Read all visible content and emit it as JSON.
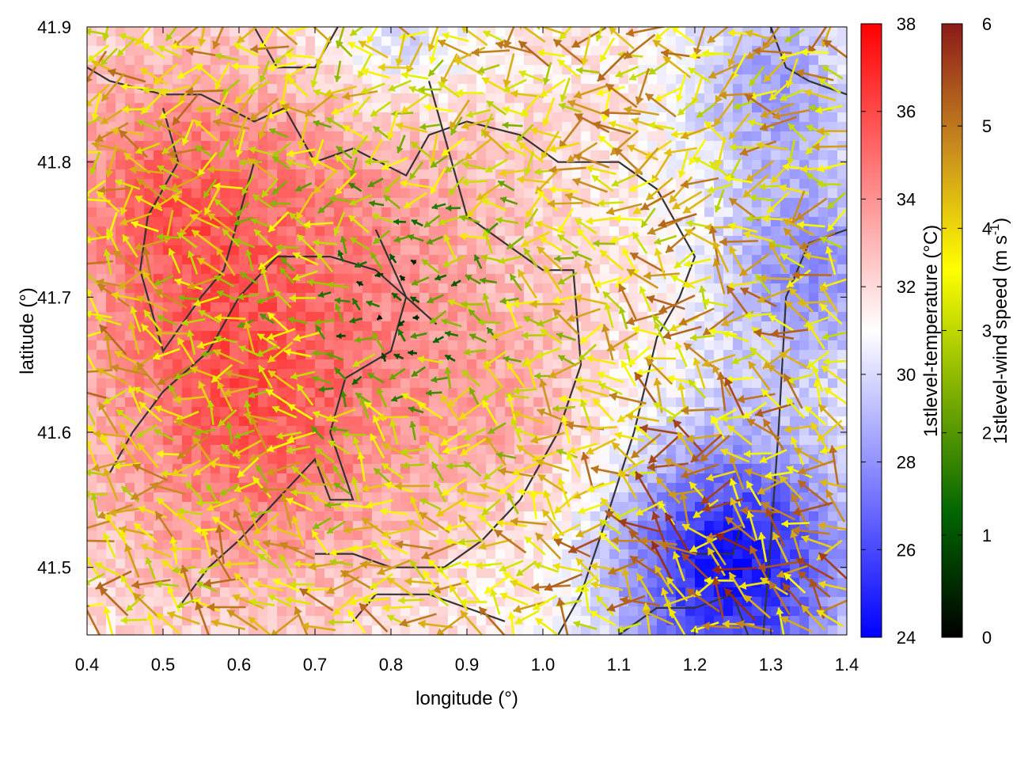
{
  "chart_data": {
    "type": "heatmap",
    "subtype": "temperature heatmap with wind vector arrows and coastline contours",
    "xlabel": "longitude (°)",
    "ylabel": "latitude (°)",
    "xlim": [
      0.4,
      1.4
    ],
    "ylim": [
      41.45,
      41.9
    ],
    "x_ticks": [
      "0.4",
      "0.5",
      "0.6",
      "0.7",
      "0.8",
      "0.9",
      "1.0",
      "1.1",
      "1.2",
      "1.3",
      "1.4"
    ],
    "y_ticks": [
      "41.5",
      "41.6",
      "41.7",
      "41.8",
      "41.9"
    ],
    "grid": false,
    "temperature_colorbar": {
      "label": "1stlevel-temperature (°C)",
      "range": [
        24,
        38
      ],
      "ticks": [
        "24",
        "26",
        "28",
        "30",
        "32",
        "34",
        "36",
        "38"
      ],
      "colors": [
        "#0000ff",
        "#ffffff",
        "#ff0000"
      ],
      "midpoint": 31
    },
    "wind_colorbar": {
      "label_main": "1stlevel-wind speed (m s",
      "label_sup": "-1",
      "label_end": ")",
      "range": [
        0,
        6
      ],
      "ticks": [
        "0",
        "1",
        "2",
        "3",
        "4",
        "5",
        "6"
      ],
      "colors": [
        "#000000",
        "#006400",
        "#7fb000",
        "#ffff00",
        "#c88a1e",
        "#8b1a1a"
      ]
    },
    "temperature_regions": [
      {
        "lon": 0.62,
        "lat": 41.62,
        "t": 35.5,
        "spread": 0.22
      },
      {
        "lon": 0.5,
        "lat": 41.78,
        "t": 34.5,
        "spread": 0.16
      },
      {
        "lon": 0.8,
        "lat": 41.8,
        "t": 33.5,
        "spread": 0.2
      },
      {
        "lon": 0.95,
        "lat": 41.62,
        "t": 33.0,
        "spread": 0.14
      },
      {
        "lon": 1.25,
        "lat": 41.5,
        "t": 24.5,
        "spread": 0.16
      },
      {
        "lon": 1.35,
        "lat": 41.72,
        "t": 28.0,
        "spread": 0.13
      },
      {
        "lon": 0.82,
        "lat": 41.89,
        "t": 29.0,
        "spread": 0.12
      },
      {
        "lon": 1.3,
        "lat": 41.86,
        "t": 28.5,
        "spread": 0.11
      }
    ],
    "background_temperature": 31.5,
    "wind_field": {
      "mean_direction": "westward",
      "slow_region_center": [
        0.8,
        41.7
      ],
      "fast_region_center": [
        1.25,
        41.52
      ],
      "speed_range": [
        0,
        6
      ]
    },
    "coastlines": [
      [
        [
          0.4,
          41.87
        ],
        [
          0.43,
          41.86
        ],
        [
          0.5,
          41.85
        ],
        [
          0.55,
          41.85
        ],
        [
          0.62,
          41.83
        ],
        [
          0.66,
          41.84
        ],
        [
          0.7,
          41.8
        ],
        [
          0.75,
          41.81
        ],
        [
          0.82,
          41.79
        ],
        [
          0.85,
          41.82
        ],
        [
          0.9,
          41.83
        ],
        [
          0.97,
          41.82
        ],
        [
          1.02,
          41.8
        ],
        [
          1.1,
          41.8
        ],
        [
          1.15,
          41.78
        ],
        [
          1.18,
          41.75
        ],
        [
          1.2,
          41.73
        ],
        [
          1.18,
          41.7
        ],
        [
          1.15,
          41.67
        ],
        [
          1.12,
          41.6
        ],
        [
          1.08,
          41.53
        ],
        [
          1.05,
          41.48
        ],
        [
          1.02,
          41.45
        ]
      ],
      [
        [
          0.5,
          41.84
        ],
        [
          0.52,
          41.8
        ],
        [
          0.48,
          41.76
        ],
        [
          0.47,
          41.72
        ],
        [
          0.5,
          41.66
        ],
        [
          0.55,
          41.7
        ],
        [
          0.58,
          41.72
        ],
        [
          0.6,
          41.76
        ],
        [
          0.62,
          41.8
        ]
      ],
      [
        [
          0.43,
          41.57
        ],
        [
          0.46,
          41.6
        ],
        [
          0.5,
          41.63
        ],
        [
          0.56,
          41.66
        ],
        [
          0.6,
          41.7
        ],
        [
          0.65,
          41.73
        ],
        [
          0.72,
          41.73
        ],
        [
          0.78,
          41.72
        ],
        [
          0.82,
          41.7
        ],
        [
          0.86,
          41.68
        ]
      ],
      [
        [
          0.85,
          41.86
        ],
        [
          0.88,
          41.8
        ],
        [
          0.9,
          41.76
        ],
        [
          0.95,
          41.74
        ],
        [
          1.0,
          41.72
        ],
        [
          1.04,
          41.72
        ],
        [
          1.05,
          41.65
        ],
        [
          1.02,
          41.6
        ],
        [
          0.97,
          41.55
        ],
        [
          0.92,
          41.52
        ],
        [
          0.87,
          41.5
        ],
        [
          0.8,
          41.5
        ],
        [
          0.75,
          41.51
        ],
        [
          0.7,
          41.51
        ]
      ],
      [
        [
          0.52,
          41.47
        ],
        [
          0.56,
          41.5
        ],
        [
          0.6,
          41.52
        ],
        [
          0.65,
          41.55
        ],
        [
          0.7,
          41.58
        ],
        [
          0.72,
          41.55
        ],
        [
          0.75,
          41.55
        ],
        [
          0.72,
          41.6
        ],
        [
          0.74,
          41.64
        ],
        [
          0.8,
          41.66
        ],
        [
          0.82,
          41.7
        ],
        [
          0.78,
          41.75
        ]
      ],
      [
        [
          0.75,
          41.46
        ],
        [
          0.78,
          41.48
        ],
        [
          0.85,
          41.48
        ],
        [
          0.9,
          41.47
        ],
        [
          0.95,
          41.46
        ]
      ],
      [
        [
          1.1,
          41.45
        ],
        [
          1.15,
          41.47
        ],
        [
          1.2,
          41.47
        ],
        [
          1.25,
          41.48
        ],
        [
          1.27,
          41.45
        ]
      ],
      [
        [
          1.2,
          41.51
        ],
        [
          1.25,
          41.51
        ],
        [
          1.26,
          41.53
        ]
      ],
      [
        [
          1.29,
          41.45
        ],
        [
          1.3,
          41.52
        ],
        [
          1.31,
          41.6
        ],
        [
          1.32,
          41.7
        ],
        [
          1.35,
          41.74
        ],
        [
          1.4,
          41.75
        ]
      ],
      [
        [
          1.3,
          41.9
        ],
        [
          1.32,
          41.87
        ],
        [
          1.35,
          41.86
        ],
        [
          1.4,
          41.85
        ]
      ],
      [
        [
          0.62,
          41.9
        ],
        [
          0.65,
          41.87
        ],
        [
          0.7,
          41.87
        ],
        [
          0.73,
          41.9
        ]
      ]
    ]
  }
}
